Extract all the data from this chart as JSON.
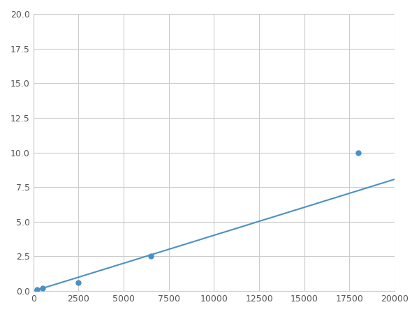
{
  "x": [
    200,
    500,
    2500,
    6500,
    18000
  ],
  "y": [
    0.1,
    0.2,
    0.6,
    2.5,
    10.0
  ],
  "line_color": "#4a90c4",
  "marker_color": "#4a90c4",
  "xlim": [
    0,
    20000
  ],
  "ylim": [
    0,
    20.0
  ],
  "xticks": [
    0,
    2500,
    5000,
    7500,
    10000,
    12500,
    15000,
    17500,
    20000
  ],
  "yticks": [
    0.0,
    2.5,
    5.0,
    7.5,
    10.0,
    12.5,
    15.0,
    17.5,
    20.0
  ],
  "grid_color": "#cccccc",
  "background_color": "#ffffff",
  "figsize": [
    6.0,
    4.5
  ],
  "dpi": 100
}
